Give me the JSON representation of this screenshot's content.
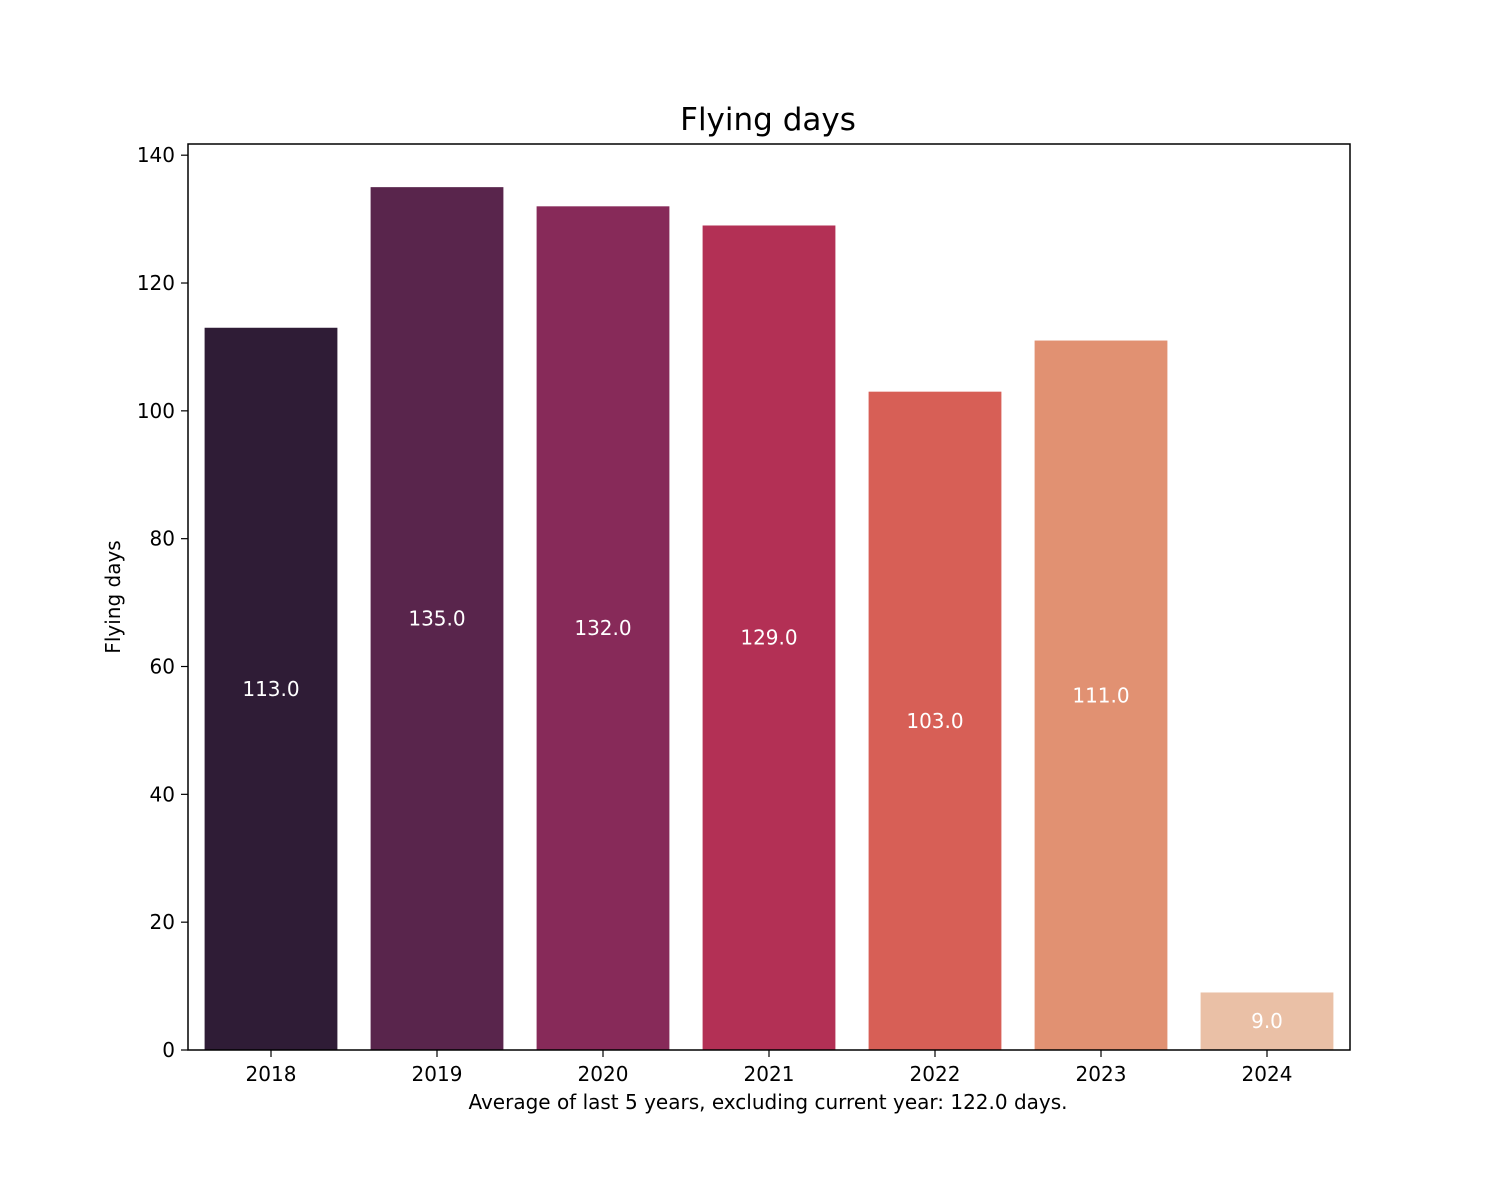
{
  "chart_data": {
    "type": "bar",
    "title": "Flying days",
    "xlabel": "Average of last 5 years, excluding current year: 122.0 days.",
    "ylabel": "Flying days",
    "categories": [
      "2018",
      "2019",
      "2020",
      "2021",
      "2022",
      "2023",
      "2024"
    ],
    "values": [
      113,
      135,
      132,
      129,
      103,
      111,
      9
    ],
    "value_labels": [
      "113.0",
      "135.0",
      "132.0",
      "129.0",
      "103.0",
      "111.0",
      "9.0"
    ],
    "colors": [
      "#2f1c36",
      "#59254c",
      "#872a59",
      "#b33055",
      "#d75f56",
      "#e19172",
      "#eac0a6"
    ],
    "yticks": [
      0,
      20,
      40,
      60,
      80,
      100,
      120,
      140
    ],
    "ylim": [
      0,
      141.75
    ],
    "grid": false,
    "legend": "none"
  }
}
